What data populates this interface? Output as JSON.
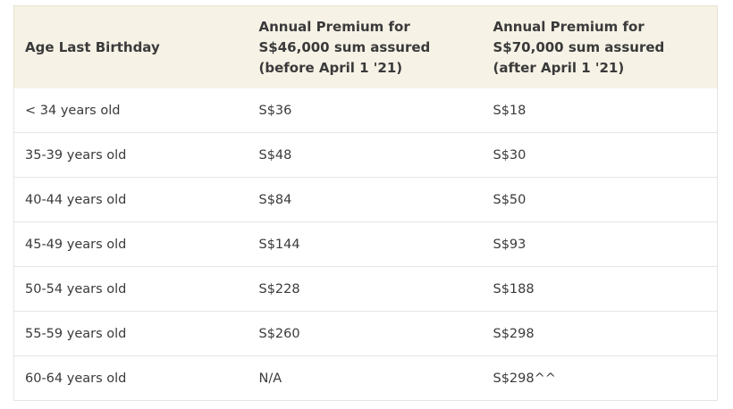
{
  "table": {
    "headers": [
      "Age Last Birthday",
      "Annual Premium for S$46,000 sum assured (before April 1 '21)",
      "Annual Premium for S$70,000 sum assured (after April 1 '21)"
    ],
    "rows": [
      [
        "< 34 years old",
        "S$36",
        "S$18"
      ],
      [
        "35-39 years old",
        "S$48",
        "S$30"
      ],
      [
        "40-44 years old",
        "S$84",
        "S$50"
      ],
      [
        "45-49 years old",
        "S$144",
        "S$93"
      ],
      [
        "50-54 years old",
        "S$228",
        "S$188"
      ],
      [
        "55-59 years old",
        "S$260",
        "S$298"
      ],
      [
        "60-64 years old",
        "N/A",
        "S$298^^"
      ]
    ]
  },
  "colors": {
    "header_background": "#f7f2e6",
    "text": "#333333",
    "row_border": "#e5e5e5"
  }
}
